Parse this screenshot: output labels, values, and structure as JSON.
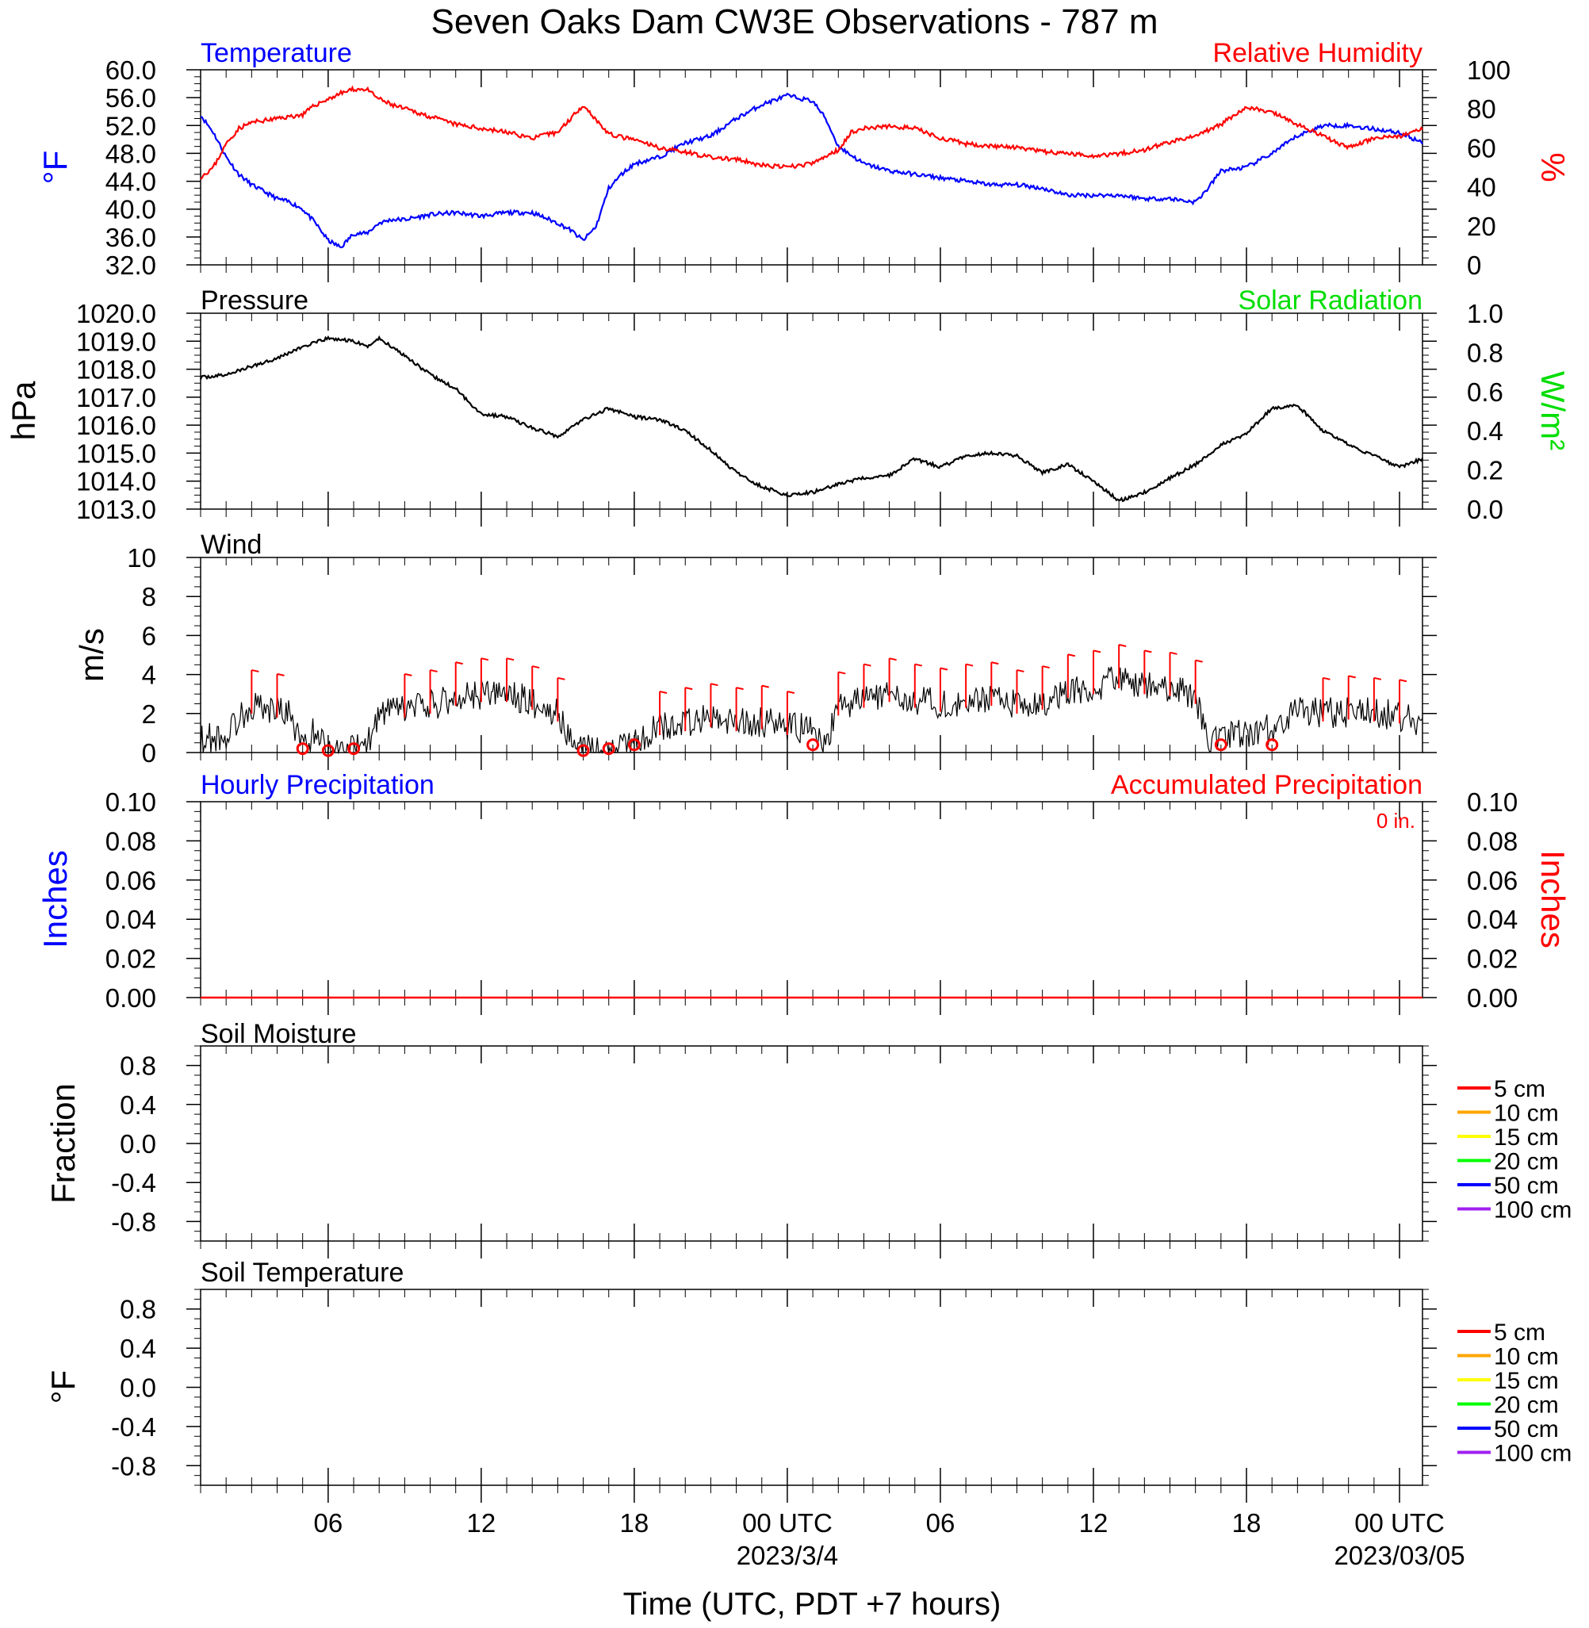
{
  "title": "Seven Oaks Dam CW3E Observations - 787 m",
  "x_axis": {
    "label": "Time (UTC, PDT +7 hours)",
    "range_hours": [
      1,
      48.9
    ],
    "ticks": [
      {
        "h": 6,
        "label": "06"
      },
      {
        "h": 12,
        "label": "12"
      },
      {
        "h": 18,
        "label": "18"
      },
      {
        "h": 24,
        "label": "00 UTC",
        "date": "2023/3/4"
      },
      {
        "h": 30,
        "label": "06"
      },
      {
        "h": 36,
        "label": "12"
      },
      {
        "h": 42,
        "label": "18"
      },
      {
        "h": 48,
        "label": "00 UTC",
        "date": "2023/03/05"
      }
    ]
  },
  "colors": {
    "temperature": "#0000ff",
    "humidity": "#ff0000",
    "pressure": "#000000",
    "solar": "#00dd00",
    "wind": "#000000",
    "barb": "#ff0000",
    "hourly_precip": "#0000ff",
    "accum_precip": "#ff0000"
  },
  "panels": {
    "temp_rh": {
      "left_title": "Temperature",
      "right_title": "Relative Humidity",
      "left_unit": "°F",
      "right_unit": "%",
      "left_ticks": [
        "60.0",
        "56.0",
        "52.0",
        "48.0",
        "44.0",
        "40.0",
        "36.0",
        "32.0"
      ],
      "right_ticks": [
        "100",
        "80",
        "60",
        "40",
        "20",
        "0"
      ]
    },
    "pressure": {
      "left_title": "Pressure",
      "right_title": "Solar Radiation",
      "left_unit": "hPa",
      "right_unit": "W/m²",
      "left_ticks": [
        "1020.0",
        "1019.0",
        "1018.0",
        "1017.0",
        "1016.0",
        "1015.0",
        "1014.0",
        "1013.0"
      ],
      "right_ticks": [
        "1.0",
        "0.8",
        "0.6",
        "0.4",
        "0.2",
        "0.0"
      ]
    },
    "wind": {
      "left_title": "Wind",
      "left_unit": "m/s",
      "left_ticks": [
        "10",
        "8",
        "6",
        "4",
        "2",
        "0"
      ]
    },
    "precip": {
      "left_title": "Hourly Precipitation",
      "right_title": "Accumulated Precipitation",
      "accum_label": "0 in.",
      "left_unit": "Inches",
      "right_unit": "Inches",
      "left_ticks": [
        "0.10",
        "0.08",
        "0.06",
        "0.04",
        "0.02",
        "0.00"
      ],
      "right_ticks": [
        "0.10",
        "0.08",
        "0.06",
        "0.04",
        "0.02",
        "0.00"
      ]
    },
    "soil_moisture": {
      "left_title": "Soil Moisture",
      "left_unit": "Fraction",
      "left_ticks": [
        "0.8",
        "0.4",
        "0.0",
        "-0.4",
        "-0.8"
      ],
      "legend": [
        {
          "label": "5 cm",
          "color": "#ff0000"
        },
        {
          "label": "10 cm",
          "color": "#ffa500"
        },
        {
          "label": "15 cm",
          "color": "#ffff00"
        },
        {
          "label": "20 cm",
          "color": "#00ff00"
        },
        {
          "label": "50 cm",
          "color": "#0000ff"
        },
        {
          "label": "100 cm",
          "color": "#a020f0"
        }
      ]
    },
    "soil_temp": {
      "left_title": "Soil Temperature",
      "left_unit": "°F",
      "left_ticks": [
        "0.8",
        "0.4",
        "0.0",
        "-0.4",
        "-0.8"
      ],
      "legend": [
        {
          "label": "5 cm",
          "color": "#ff0000"
        },
        {
          "label": "10 cm",
          "color": "#ffa500"
        },
        {
          "label": "15 cm",
          "color": "#ffff00"
        },
        {
          "label": "20 cm",
          "color": "#00ff00"
        },
        {
          "label": "50 cm",
          "color": "#0000ff"
        },
        {
          "label": "100 cm",
          "color": "#a020f0"
        }
      ]
    }
  },
  "chart_data": [
    {
      "type": "line",
      "title": "Temperature",
      "ylabel": "°F",
      "x_units": "hours since 2023-03-03 00 UTC",
      "ylim": [
        32,
        60
      ],
      "series": [
        {
          "name": "Temperature",
          "x": [
            1,
            1.5,
            2,
            2.5,
            3,
            3.5,
            4,
            4.5,
            5,
            5.5,
            6,
            6.5,
            7,
            7.5,
            8,
            8.5,
            9,
            10,
            11,
            12,
            13,
            14,
            15,
            15.5,
            16,
            16.5,
            17,
            17.5,
            18,
            19,
            20,
            21,
            22,
            23,
            24,
            25,
            25.5,
            26,
            27,
            28,
            29,
            30,
            31,
            32,
            33,
            34,
            35,
            36,
            37,
            38,
            39,
            40,
            40.5,
            41,
            42,
            43,
            44,
            45,
            46,
            47,
            48,
            48.9
          ],
          "values": [
            53.5,
            51,
            47.5,
            45,
            43.5,
            42.5,
            41.5,
            41,
            40,
            38,
            35.5,
            34.5,
            36.5,
            36.5,
            38,
            38.5,
            38.5,
            39.2,
            39.5,
            39,
            39.5,
            39.5,
            38,
            37,
            35.5,
            37.5,
            43,
            45,
            46.5,
            47.5,
            49.5,
            50.5,
            53,
            55,
            56.3,
            55.5,
            53,
            49,
            46.5,
            45.5,
            45,
            44.5,
            44,
            43.5,
            43.5,
            43,
            42,
            42,
            42,
            41.5,
            41.5,
            41,
            43,
            45.5,
            46,
            48,
            50.5,
            52,
            52,
            51.5,
            51,
            49.5
          ]
        }
      ]
    },
    {
      "type": "line",
      "title": "Relative Humidity",
      "ylabel": "%",
      "x_units": "hours since 2023-03-03 00 UTC",
      "ylim": [
        0,
        100
      ],
      "series": [
        {
          "name": "Relative Humidity",
          "x": [
            1,
            1.5,
            2,
            2.5,
            3,
            3.5,
            4,
            5,
            5.5,
            6,
            6.5,
            7,
            7.5,
            8,
            8.5,
            9,
            10,
            11,
            12,
            13,
            14,
            15,
            15.5,
            16,
            17,
            18,
            19,
            20,
            21,
            22,
            23,
            24,
            25,
            26,
            26.5,
            27,
            28,
            29,
            30,
            31,
            32,
            33,
            34,
            35,
            36,
            37,
            38,
            39,
            40,
            41,
            42,
            43,
            44,
            45,
            46,
            47,
            48,
            48.9
          ],
          "values": [
            45,
            50,
            62,
            70,
            73,
            74,
            75,
            77,
            82,
            85,
            88,
            90,
            90,
            85,
            82,
            80,
            76,
            72,
            70,
            68,
            65,
            68,
            75,
            82,
            67,
            64,
            60,
            58,
            55,
            54,
            51,
            50,
            52,
            59,
            68,
            70,
            71,
            70,
            65,
            62,
            61,
            60,
            58,
            57,
            56,
            57,
            59,
            63,
            66,
            72,
            81,
            78,
            72,
            66,
            60,
            65,
            66,
            70
          ]
        }
      ]
    },
    {
      "type": "line",
      "title": "Pressure",
      "ylabel": "hPa",
      "x_units": "hours since 2023-03-03 00 UTC",
      "ylim": [
        1013,
        1020
      ],
      "series": [
        {
          "name": "Pressure",
          "x": [
            1,
            2,
            3,
            4,
            5,
            6,
            7,
            7.5,
            8,
            9,
            10,
            11,
            12,
            13,
            14,
            15,
            16,
            17,
            18,
            19,
            20,
            21,
            22,
            23,
            24,
            25,
            26,
            27,
            28,
            29,
            30,
            31,
            32,
            33,
            34,
            35,
            36,
            37,
            38,
            39,
            40,
            41,
            42,
            43,
            44,
            45,
            46,
            47,
            48,
            48.9
          ],
          "values": [
            1017.7,
            1017.8,
            1018.1,
            1018.4,
            1018.8,
            1019.1,
            1019.0,
            1018.8,
            1019.1,
            1018.5,
            1017.8,
            1017.3,
            1016.4,
            1016.3,
            1015.9,
            1015.6,
            1016.2,
            1016.6,
            1016.3,
            1016.2,
            1015.8,
            1015.1,
            1014.3,
            1013.8,
            1013.5,
            1013.6,
            1013.9,
            1014.1,
            1014.2,
            1014.8,
            1014.5,
            1014.9,
            1015.0,
            1014.9,
            1014.3,
            1014.6,
            1014.0,
            1013.3,
            1013.6,
            1014.1,
            1014.6,
            1015.3,
            1015.7,
            1016.6,
            1016.7,
            1015.8,
            1015.3,
            1014.9,
            1014.5,
            1014.8
          ]
        }
      ]
    },
    {
      "type": "line",
      "title": "Wind",
      "ylabel": "m/s",
      "x_units": "hours since 2023-03-03 00 UTC",
      "ylim": [
        0,
        10
      ],
      "series": [
        {
          "name": "Wind",
          "x": [
            1,
            1.5,
            2,
            2.5,
            3,
            3.5,
            4,
            4.5,
            5,
            5.5,
            6,
            6.5,
            7,
            7.5,
            8,
            9,
            10,
            11,
            12,
            13,
            14,
            15,
            15.5,
            16,
            17,
            18,
            19,
            20,
            21,
            22,
            23,
            24,
            25,
            25.5,
            26,
            27,
            28,
            29,
            30,
            31,
            32,
            33,
            34,
            35,
            36,
            37,
            38,
            39,
            40,
            40.5,
            41,
            42,
            43,
            44,
            45,
            46,
            47,
            48,
            48.9
          ],
          "values": [
            0.6,
            0.8,
            0.8,
            1.8,
            2.4,
            2.3,
            2.2,
            2.0,
            0.2,
            1.2,
            0.1,
            0.3,
            0.2,
            0.2,
            2.0,
            2.2,
            2.4,
            2.8,
            3.0,
            3.0,
            2.6,
            2.0,
            0.6,
            0.1,
            0.2,
            0.6,
            1.3,
            1.5,
            1.7,
            1.5,
            1.6,
            1.3,
            1.2,
            0.4,
            2.3,
            2.7,
            3.0,
            2.7,
            2.5,
            2.7,
            2.8,
            2.4,
            2.6,
            3.2,
            3.4,
            3.7,
            3.4,
            3.3,
            2.9,
            0.5,
            1.0,
            1.0,
            1.2,
            2.2,
            2.0,
            2.1,
            2.0,
            1.9,
            1.5
          ]
        }
      ]
    },
    {
      "type": "line",
      "title": "Hourly Precipitation",
      "ylabel": "Inches",
      "x_units": "hours since 2023-03-03 00 UTC",
      "ylim": [
        0,
        0.1
      ],
      "series": [
        {
          "name": "Hourly Precipitation",
          "x": [
            1,
            48.9
          ],
          "values": [
            0,
            0
          ]
        },
        {
          "name": "Accumulated Precipitation",
          "x": [
            1,
            48.9
          ],
          "values": [
            0,
            0
          ]
        }
      ]
    },
    {
      "type": "line",
      "title": "Soil Moisture",
      "ylabel": "Fraction",
      "ylim": [
        -1,
        1
      ],
      "series": []
    },
    {
      "type": "line",
      "title": "Soil Temperature",
      "ylabel": "°F",
      "ylim": [
        -1,
        1
      ],
      "series": []
    }
  ]
}
